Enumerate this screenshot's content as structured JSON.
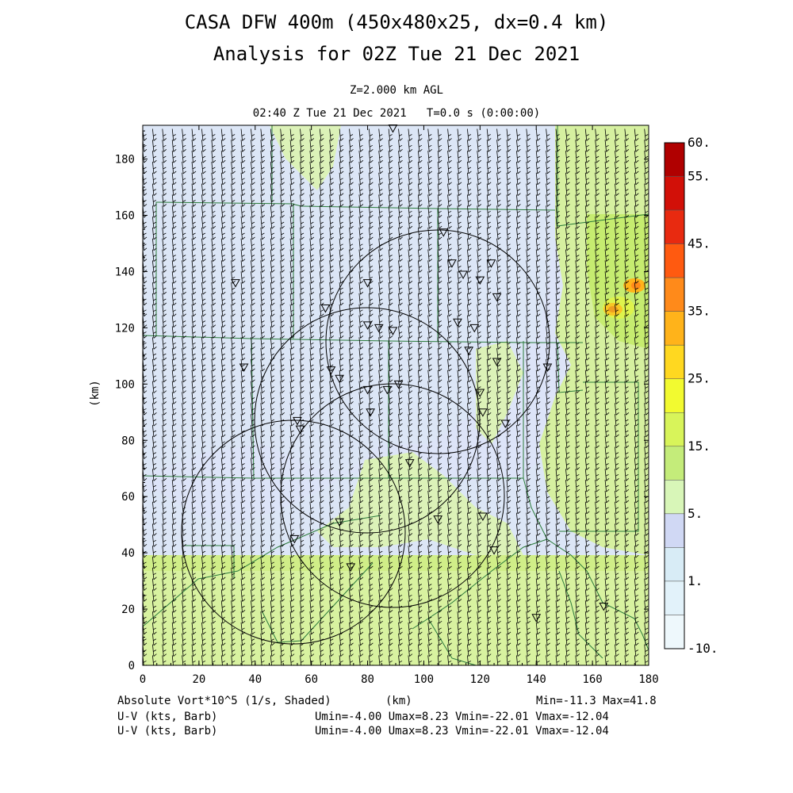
{
  "header": {
    "title_line1": "CASA DFW 400m (450x480x25, dx=0.4 km)",
    "title_line2": "Analysis for 02Z Tue 21 Dec 2021",
    "level": "Z=2.000 km AGL",
    "valid_time": "02:40 Z Tue 21 Dec 2021   T=0.0 s (0:00:00)"
  },
  "axes": {
    "x_ticks": [
      "0",
      "20",
      "40",
      "60",
      "80",
      "100",
      "120",
      "140",
      "160",
      "180"
    ],
    "y_ticks": [
      "0",
      "20",
      "40",
      "60",
      "80",
      "100",
      "120",
      "140",
      "160",
      "180"
    ],
    "x_label": "(km)",
    "y_label": "(km)",
    "xlim": [
      0,
      180
    ],
    "ylim": [
      0,
      192
    ]
  },
  "colorbar": {
    "labels": [
      "60.",
      "55.",
      "45.",
      "35.",
      "25.",
      "15.",
      "5.",
      "1.",
      "-10."
    ],
    "colors": [
      "#b00000",
      "#d21008",
      "#e82a10",
      "#ff5a10",
      "#ff8a1a",
      "#ffb31a",
      "#ffd820",
      "#f2fa30",
      "#d8f45a",
      "#c4ec7a",
      "#d8f6b8",
      "#d0d8f4",
      "#d8ecf6",
      "#e2f2fa",
      "#eef8fc"
    ]
  },
  "field": {
    "variable": "Absolute Vort*10^5 (1/s, Shaded)",
    "min_max": "Min=-11.3 Max=41.8",
    "vectors_1": "U-V (kts, Barb)",
    "vectors_2": "U-V (kts, Barb)",
    "uv_stats_1": "Umin=-4.00 Umax=8.23 Vmin=-22.01 Vmax=-12.04",
    "uv_stats_2": "Umin=-4.00 Umax=8.23 Vmin=-22.01 Vmax=-12.04"
  },
  "map_colors": {
    "negative": "#d8e8f6",
    "low": "#d0d8f4",
    "mid": "#d8f4b8",
    "high": "#c8ec78",
    "county_lines": "#2a7a3a"
  }
}
